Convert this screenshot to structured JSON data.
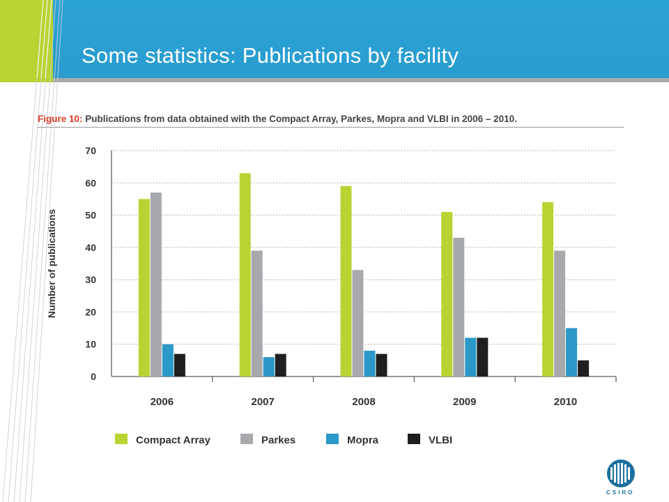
{
  "slide": {
    "title": "Some statistics: Publications by facility"
  },
  "figure": {
    "label": "Figure 10:",
    "caption": "Publications from data obtained with the Compact Array, Parkes, Mopra and VLBI in 2006 – 2010."
  },
  "logo": {
    "text": "CSIRO"
  },
  "colors": {
    "header_blue": "#2ba3d4",
    "accent_green": "#b8d432",
    "compact_array": "#b8d432",
    "parkes": "#a7a9ac",
    "mopra": "#2b98c8",
    "vlbi": "#1f1f1f"
  },
  "chart_data": {
    "type": "bar",
    "title": "Publications from data obtained with the Compact Array, Parkes, Mopra and VLBI in 2006 – 2010.",
    "xlabel": "",
    "ylabel": "Number of publications",
    "ylim": [
      0,
      70
    ],
    "yticks": [
      "0",
      "10",
      "20",
      "30",
      "40",
      "50",
      "60",
      "70"
    ],
    "categories": [
      "2006",
      "2007",
      "2008",
      "2009",
      "2010"
    ],
    "grid": true,
    "legend_position": "bottom",
    "series": [
      {
        "name": "Compact Array",
        "color": "#b8d432",
        "values": [
          55,
          63,
          59,
          51,
          54
        ]
      },
      {
        "name": "Parkes",
        "color": "#a7a9ac",
        "values": [
          57,
          39,
          33,
          43,
          39
        ]
      },
      {
        "name": "Mopra",
        "color": "#2b98c8",
        "values": [
          10,
          6,
          8,
          12,
          15
        ]
      },
      {
        "name": "VLBI",
        "color": "#1f1f1f",
        "values": [
          7,
          7,
          7,
          12,
          5
        ]
      }
    ]
  }
}
